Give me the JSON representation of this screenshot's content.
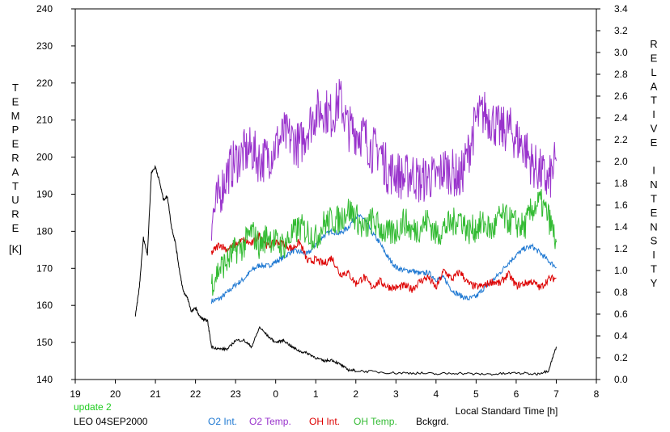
{
  "chart_data": {
    "type": "line",
    "xlabel": "Local Standard Time [h]",
    "ylabel": "TEMPERATURE",
    "ylabel_unit": "[K]",
    "y2label": "RELATIVE INTENSITY",
    "xlim": [
      19,
      32
    ],
    "ylim": [
      140,
      240
    ],
    "y2lim": [
      0.0,
      3.4
    ],
    "x_ticks": [
      19,
      20,
      21,
      22,
      23,
      24,
      25,
      26,
      27,
      28,
      29,
      30,
      31,
      32
    ],
    "x_tick_labels": [
      "19",
      "20",
      "21",
      "22",
      "23",
      "0",
      "1",
      "2",
      "3",
      "4",
      "5",
      "6",
      "7",
      "8"
    ],
    "y_ticks": [
      140,
      150,
      160,
      170,
      180,
      190,
      200,
      210,
      220,
      230,
      240
    ],
    "y2_ticks": [
      "0.0",
      "0.2",
      "0.4",
      "0.6",
      "0.8",
      "1.0",
      "1.2",
      "1.4",
      "1.6",
      "1.8",
      "2.0",
      "2.2",
      "2.4",
      "2.6",
      "2.8",
      "3.0",
      "3.2",
      "3.4"
    ],
    "grid": false,
    "annotations": {
      "update": "update 2",
      "station": "LEO 04SEP2000"
    },
    "legend": [
      "O2 Int.",
      "O2 Temp.",
      "OH Int.",
      "OH Temp.",
      "Bckgrd."
    ],
    "series": [
      {
        "name": "O2 Int.",
        "axis": "right",
        "color": "#1e78d2",
        "x": [
          22.4,
          22.6,
          22.8,
          23.0,
          23.2,
          23.4,
          23.6,
          23.8,
          24.0,
          24.2,
          24.4,
          24.6,
          24.8,
          25.0,
          25.2,
          25.4,
          25.6,
          25.8,
          26.0,
          26.2,
          26.4,
          26.6,
          26.8,
          27.0,
          27.2,
          27.4,
          27.6,
          27.8,
          28.0,
          28.2,
          28.4,
          28.6,
          28.8,
          29.0,
          29.2,
          29.4,
          29.6,
          29.8,
          30.0,
          30.2,
          30.4,
          30.6,
          30.8,
          31.0
        ],
        "y": [
          0.72,
          0.74,
          0.8,
          0.87,
          0.92,
          1.0,
          1.05,
          1.04,
          1.08,
          1.12,
          1.18,
          1.17,
          1.15,
          1.24,
          1.32,
          1.36,
          1.34,
          1.39,
          1.5,
          1.48,
          1.35,
          1.25,
          1.12,
          1.03,
          1.0,
          1.0,
          0.97,
          0.98,
          0.92,
          0.93,
          0.82,
          0.77,
          0.74,
          0.76,
          0.84,
          0.9,
          0.98,
          1.07,
          1.14,
          1.2,
          1.22,
          1.16,
          1.09,
          1.03
        ]
      },
      {
        "name": "O2 Temp.",
        "axis": "left",
        "color": "#9933cc",
        "x": [
          22.4,
          22.6,
          22.8,
          23.0,
          23.2,
          23.4,
          23.6,
          23.8,
          24.0,
          24.2,
          24.4,
          24.6,
          24.8,
          25.0,
          25.2,
          25.4,
          25.6,
          25.8,
          26.0,
          26.2,
          26.4,
          26.6,
          26.8,
          27.0,
          27.2,
          27.4,
          27.6,
          27.8,
          28.0,
          28.2,
          28.4,
          28.6,
          28.8,
          29.0,
          29.2,
          29.4,
          29.6,
          29.8,
          30.0,
          30.2,
          30.4,
          30.6,
          30.8,
          31.0
        ],
        "y": [
          183,
          190,
          196,
          199,
          201,
          202,
          199,
          200,
          203,
          206,
          205,
          203,
          208,
          212,
          213,
          211,
          216,
          208,
          207,
          206,
          202,
          202,
          196,
          196,
          194,
          196,
          193,
          195,
          194,
          197,
          196,
          194,
          201,
          210,
          212,
          210,
          207,
          208,
          205,
          203,
          198,
          196,
          193,
          199
        ]
      },
      {
        "name": "OH Int.",
        "axis": "right",
        "color": "#dd0000",
        "x": [
          22.4,
          22.6,
          22.8,
          23.0,
          23.2,
          23.4,
          23.6,
          23.8,
          24.0,
          24.2,
          24.4,
          24.6,
          24.8,
          25.0,
          25.2,
          25.4,
          25.6,
          25.8,
          26.0,
          26.2,
          26.4,
          26.6,
          26.8,
          27.0,
          27.2,
          27.4,
          27.6,
          27.8,
          28.0,
          28.2,
          28.4,
          28.6,
          28.8,
          29.0,
          29.2,
          29.4,
          29.6,
          29.8,
          30.0,
          30.2,
          30.4,
          30.6,
          30.8,
          31.0
        ],
        "y": [
          1.16,
          1.24,
          1.19,
          1.24,
          1.28,
          1.24,
          1.33,
          1.22,
          1.26,
          1.25,
          1.2,
          1.26,
          1.08,
          1.1,
          1.06,
          1.12,
          0.97,
          0.98,
          0.88,
          0.94,
          0.85,
          0.9,
          0.85,
          0.84,
          0.86,
          0.83,
          0.9,
          0.94,
          0.84,
          1.0,
          0.92,
          0.99,
          0.88,
          0.85,
          0.86,
          0.9,
          0.88,
          0.97,
          0.86,
          0.88,
          0.9,
          0.84,
          0.92,
          0.93
        ]
      },
      {
        "name": "OH Temp.",
        "axis": "left",
        "color": "#33bb33",
        "x": [
          22.4,
          22.6,
          22.8,
          23.0,
          23.2,
          23.4,
          23.6,
          23.8,
          24.0,
          24.2,
          24.4,
          24.6,
          24.8,
          25.0,
          25.2,
          25.4,
          25.6,
          25.8,
          26.0,
          26.2,
          26.4,
          26.6,
          26.8,
          27.0,
          27.2,
          27.4,
          27.6,
          27.8,
          28.0,
          28.2,
          28.4,
          28.6,
          28.8,
          29.0,
          29.2,
          29.4,
          29.6,
          29.8,
          30.0,
          30.2,
          30.4,
          30.6,
          30.8,
          31.0
        ],
        "y": [
          166,
          170,
          172,
          175,
          176,
          180,
          176,
          179,
          177,
          176,
          179,
          181,
          180,
          178,
          182,
          183,
          183,
          186,
          184,
          180,
          183,
          181,
          179,
          180,
          183,
          180,
          181,
          183,
          179,
          181,
          182,
          184,
          180,
          181,
          182,
          180,
          184,
          183,
          182,
          181,
          186,
          188,
          184,
          177
        ]
      },
      {
        "name": "Bckgrd.",
        "axis": "right",
        "color": "#000000",
        "x": [
          20.5,
          20.6,
          20.7,
          20.8,
          20.9,
          21.0,
          21.1,
          21.2,
          21.3,
          21.4,
          21.5,
          21.6,
          21.7,
          21.8,
          21.9,
          22.0,
          22.1,
          22.2,
          22.3,
          22.4,
          22.6,
          22.8,
          23.0,
          23.2,
          23.4,
          23.6,
          23.8,
          24.0,
          24.2,
          24.4,
          24.6,
          24.8,
          25.0,
          25.2,
          25.4,
          25.6,
          25.8,
          26.0,
          26.5,
          27.0,
          27.5,
          28.0,
          28.5,
          29.0,
          29.5,
          30.0,
          30.5,
          30.8,
          31.0
        ],
        "y": [
          0.58,
          0.85,
          1.3,
          1.15,
          1.9,
          1.95,
          1.82,
          1.65,
          1.68,
          1.4,
          1.25,
          1.0,
          0.8,
          0.75,
          0.62,
          0.66,
          0.58,
          0.55,
          0.54,
          0.3,
          0.28,
          0.28,
          0.36,
          0.36,
          0.3,
          0.48,
          0.4,
          0.34,
          0.36,
          0.3,
          0.26,
          0.24,
          0.2,
          0.17,
          0.18,
          0.14,
          0.09,
          0.08,
          0.07,
          0.06,
          0.06,
          0.05,
          0.06,
          0.05,
          0.05,
          0.06,
          0.05,
          0.08,
          0.3
        ]
      }
    ]
  }
}
